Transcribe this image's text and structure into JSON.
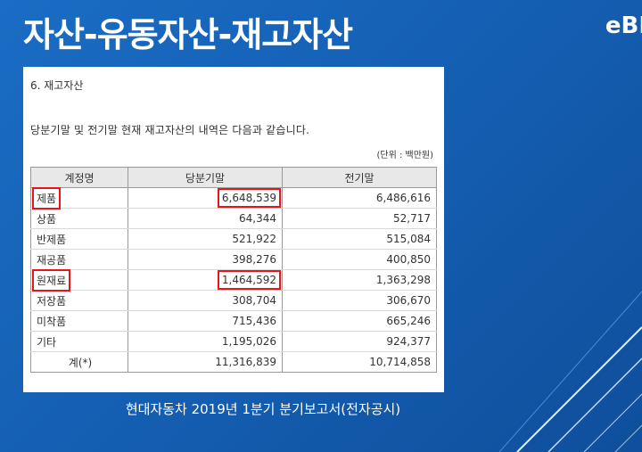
{
  "slide": {
    "title": "자산-유동자산-재고자산",
    "logo": "eBI",
    "caption": "현대자동차 2019년 1분기 분기보고서(전자공시)"
  },
  "document": {
    "section_heading": "6. 재고자산",
    "intro": "당분기말 및 전기말 현재 재고자산의 내역은 다음과 같습니다.",
    "unit": "(단위 : 백만원)",
    "columns": [
      "계정명",
      "당분기말",
      "전기말"
    ],
    "rows": [
      {
        "name": "제품",
        "current": "6,648,539",
        "previous": "6,486,616",
        "highlight": true
      },
      {
        "name": "상품",
        "current": "64,344",
        "previous": "52,717",
        "highlight": false
      },
      {
        "name": "반제품",
        "current": "521,922",
        "previous": "515,084",
        "highlight": false
      },
      {
        "name": "재공품",
        "current": "398,276",
        "previous": "400,850",
        "highlight": false
      },
      {
        "name": "원재료",
        "current": "1,464,592",
        "previous": "1,363,298",
        "highlight": true
      },
      {
        "name": "저장품",
        "current": "308,704",
        "previous": "306,670",
        "highlight": false
      },
      {
        "name": "미착품",
        "current": "715,436",
        "previous": "665,246",
        "highlight": false
      },
      {
        "name": "기타",
        "current": "1,195,026",
        "previous": "924,377",
        "highlight": false
      },
      {
        "name": "계(*)",
        "current": "11,316,839",
        "previous": "10,714,858",
        "highlight": false,
        "total": true
      }
    ]
  },
  "colors": {
    "background": "#1560b4",
    "highlight_box": "#e8131b"
  }
}
